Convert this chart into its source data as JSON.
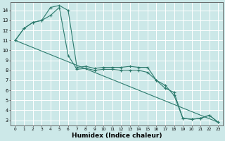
{
  "title": "",
  "xlabel": "Humidex (Indice chaleur)",
  "background_color": "#cce8e8",
  "grid_color": "#ffffff",
  "line_color": "#2e7b6e",
  "xlim": [
    -0.5,
    23.5
  ],
  "ylim": [
    2.5,
    14.8
  ],
  "xticks": [
    0,
    1,
    2,
    3,
    4,
    5,
    6,
    7,
    8,
    9,
    10,
    11,
    12,
    13,
    14,
    15,
    16,
    17,
    18,
    19,
    20,
    21,
    22,
    23
  ],
  "yticks": [
    3,
    4,
    5,
    6,
    7,
    8,
    9,
    10,
    11,
    12,
    13,
    14
  ],
  "series1_x": [
    0,
    1,
    2,
    3,
    4,
    5,
    6,
    7,
    8,
    9,
    10,
    11,
    12,
    13,
    14,
    15,
    16,
    17,
    18,
    19,
    20,
    21,
    22,
    23
  ],
  "series1_y": [
    11,
    12.2,
    12.8,
    13.0,
    14.3,
    14.5,
    14.0,
    8.3,
    8.4,
    8.2,
    8.3,
    8.3,
    8.3,
    8.4,
    8.3,
    8.3,
    7.0,
    6.5,
    5.5,
    3.2,
    3.1,
    3.2,
    3.5,
    2.8
  ],
  "series2_x": [
    0,
    1,
    2,
    3,
    4,
    5,
    6,
    7,
    8,
    9,
    10,
    11,
    12,
    13,
    14,
    15,
    16,
    17,
    18,
    19,
    20,
    21,
    22,
    23
  ],
  "series2_y": [
    11,
    12.2,
    12.8,
    13.0,
    13.5,
    14.3,
    9.5,
    8.1,
    8.2,
    8.0,
    8.1,
    8.1,
    8.0,
    8.0,
    8.0,
    7.8,
    7.0,
    6.2,
    5.8,
    3.2,
    3.1,
    3.2,
    3.5,
    2.8
  ],
  "series3_x": [
    0,
    23
  ],
  "series3_y": [
    11,
    2.8
  ]
}
